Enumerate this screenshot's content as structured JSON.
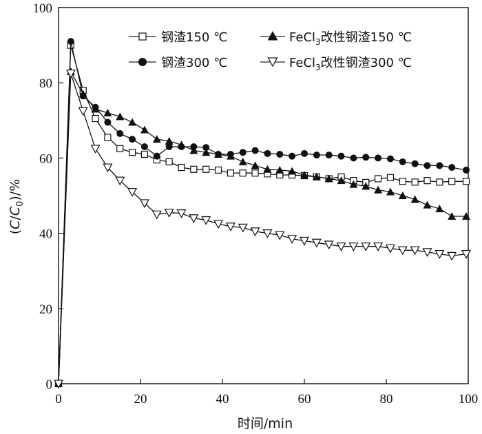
{
  "chart_data": {
    "type": "line",
    "xlabel": "时间/min",
    "ylabel": {
      "open": "(",
      "c": "C",
      "slash": "/",
      "c0": "C",
      "sub": "0",
      "close": ")/%"
    },
    "xlim": [
      0,
      100
    ],
    "ylim": [
      0,
      100
    ],
    "xticks": [
      "0",
      "20",
      "40",
      "60",
      "80",
      "100"
    ],
    "yticks": [
      "0",
      "20",
      "40",
      "60",
      "80",
      "100"
    ],
    "grid": false,
    "legend_position": "top-right",
    "series": [
      {
        "name": "钢渣150 ℃",
        "marker": "open-square",
        "x": [
          0,
          3,
          6,
          9,
          12,
          15,
          18,
          21,
          24,
          27,
          30,
          33,
          36,
          39,
          42,
          45,
          48,
          51,
          54,
          57,
          60,
          63,
          66,
          69,
          72,
          75,
          78,
          81,
          84,
          87,
          90,
          93,
          96,
          99.5
        ],
        "y": [
          0,
          90,
          78,
          70.5,
          65.5,
          62.5,
          61.5,
          61,
          59.5,
          59,
          57.5,
          57,
          57,
          56.8,
          56,
          56,
          56,
          55.8,
          55.5,
          55.5,
          55.3,
          55,
          54.5,
          55,
          54,
          53.5,
          54.5,
          54.8,
          53.8,
          53.6,
          54,
          53.6,
          53.8,
          53.8
        ]
      },
      {
        "name": "钢渣300 ℃",
        "marker": "filled-circle",
        "x": [
          0,
          3,
          6,
          9,
          12,
          15,
          18,
          21,
          24,
          27,
          30,
          33,
          36,
          39,
          42,
          45,
          48,
          51,
          54,
          57,
          60,
          63,
          66,
          69,
          72,
          75,
          78,
          81,
          84,
          87,
          90,
          93,
          96,
          99.5
        ],
        "y": [
          0,
          91,
          76.5,
          73.5,
          69.5,
          66.5,
          65,
          63,
          60.5,
          63,
          63,
          63,
          62.8,
          61,
          61,
          61.5,
          62,
          61.2,
          61,
          60.5,
          61.2,
          60.8,
          60.8,
          60.5,
          60,
          60.2,
          60,
          59.8,
          59,
          58.5,
          58,
          58,
          57.5,
          56.8
        ]
      },
      {
        "name": "FeCl3改性钢渣150 ℃",
        "marker": "filled-triangle",
        "x": [
          0,
          3,
          6,
          9,
          12,
          15,
          18,
          21,
          24,
          27,
          30,
          33,
          36,
          39,
          42,
          45,
          48,
          51,
          54,
          57,
          60,
          63,
          66,
          69,
          72,
          75,
          78,
          81,
          84,
          87,
          90,
          93,
          96,
          99.5
        ],
        "y": [
          0,
          83,
          77,
          73,
          72,
          71,
          69.5,
          67.5,
          65,
          64.5,
          63.5,
          62,
          61.5,
          61,
          60.5,
          59,
          58,
          57,
          56.8,
          56.5,
          55.5,
          55,
          54.5,
          54,
          53,
          52.5,
          51.5,
          51,
          50,
          49,
          47.5,
          46.5,
          44.5,
          44.5
        ]
      },
      {
        "name": "FeCl3改性钢渣300 ℃",
        "marker": "open-triangle-down",
        "x": [
          0,
          3,
          6,
          9,
          12,
          15,
          18,
          21,
          24,
          27,
          30,
          33,
          36,
          39,
          42,
          45,
          48,
          51,
          54,
          57,
          60,
          63,
          66,
          69,
          72,
          75,
          78,
          81,
          84,
          87,
          90,
          93,
          96,
          99.5
        ],
        "y": [
          0,
          82.5,
          72.5,
          62.5,
          57.5,
          54,
          51,
          48,
          45,
          45.5,
          45.3,
          44,
          43.5,
          42.5,
          41.8,
          41.5,
          40.5,
          40,
          39.5,
          38.5,
          38,
          37.5,
          37,
          36.5,
          36.5,
          36.5,
          36.5,
          36,
          35.5,
          35.5,
          35,
          34.5,
          34,
          34.5
        ]
      }
    ],
    "legend": [
      {
        "prefix": "钢渣150 ℃",
        "sub": "",
        "suffix": ""
      },
      {
        "prefix": "钢渣300 ℃",
        "sub": "",
        "suffix": ""
      },
      {
        "prefix": "FeCl",
        "sub": "3",
        "suffix": "改性钢渣150 ℃"
      },
      {
        "prefix": "FeCl",
        "sub": "3",
        "suffix": "改性钢渣300 ℃"
      }
    ]
  }
}
